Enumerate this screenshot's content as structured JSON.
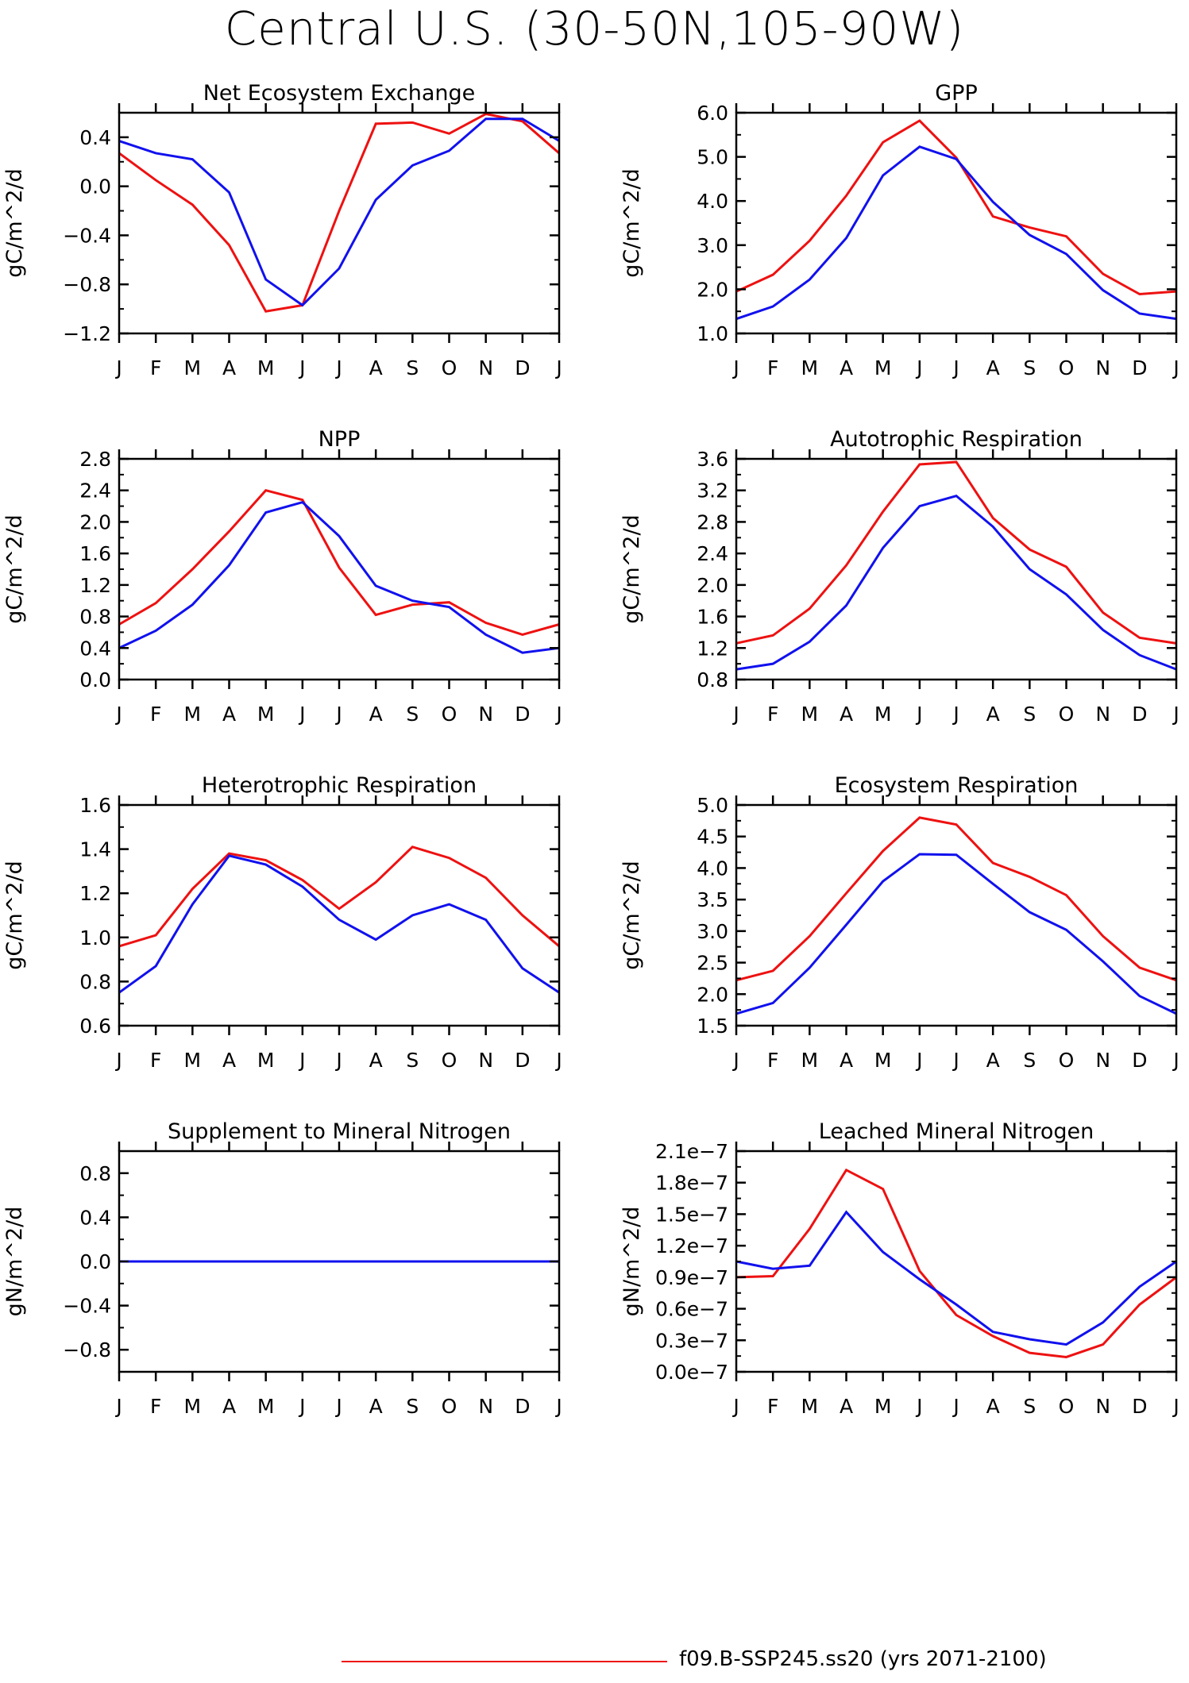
{
  "title": "Central U.S. (30-50N,105-90W)",
  "colors": {
    "series_1": "#ee1111",
    "series_2": "#1111ee",
    "axis": "#000000"
  },
  "legend": [
    {
      "label": "f09.B-SSP245.ss20 (yrs 2071-2100)",
      "color": "#ee1111"
    }
  ],
  "chart_data": [
    {
      "type": "line",
      "title": "Net Ecosystem Exchange",
      "ylabel": "gC/m^2/d",
      "categories": [
        "J",
        "F",
        "M",
        "A",
        "M",
        "J",
        "J",
        "A",
        "S",
        "O",
        "N",
        "D",
        "J"
      ],
      "ylim": [
        -1.2,
        0.6
      ],
      "yticks": [
        -1.2,
        -0.8,
        -0.4,
        0.0,
        0.4
      ],
      "ytick_labels": [
        "-1.2",
        "-0.8",
        "-0.4",
        "0.0",
        "0.4"
      ],
      "series": [
        {
          "color": "#ee1111",
          "values": [
            0.27,
            0.05,
            -0.15,
            -0.48,
            -1.02,
            -0.97,
            -0.2,
            0.51,
            0.52,
            0.43,
            0.59,
            0.53,
            0.27
          ]
        },
        {
          "color": "#1111ee",
          "values": [
            0.37,
            0.27,
            0.22,
            -0.05,
            -0.76,
            -0.97,
            -0.67,
            -0.11,
            0.17,
            0.29,
            0.55,
            0.55,
            0.37
          ]
        }
      ]
    },
    {
      "type": "line",
      "title": "GPP",
      "ylabel": "gC/m^2/d",
      "categories": [
        "J",
        "F",
        "M",
        "A",
        "M",
        "J",
        "J",
        "A",
        "S",
        "O",
        "N",
        "D",
        "J"
      ],
      "ylim": [
        1.0,
        6.0
      ],
      "yticks": [
        1.0,
        2.0,
        3.0,
        4.0,
        5.0,
        6.0
      ],
      "ytick_labels": [
        "1.0",
        "2.0",
        "3.0",
        "4.0",
        "5.0",
        "6.0"
      ],
      "series": [
        {
          "color": "#ee1111",
          "values": [
            1.95,
            2.33,
            3.1,
            4.12,
            5.33,
            5.82,
            4.98,
            3.65,
            3.4,
            3.2,
            2.35,
            1.89,
            1.95
          ]
        },
        {
          "color": "#1111ee",
          "values": [
            1.33,
            1.61,
            2.22,
            3.16,
            4.58,
            5.23,
            4.95,
            3.98,
            3.23,
            2.8,
            1.98,
            1.45,
            1.33
          ]
        }
      ]
    },
    {
      "type": "line",
      "title": "NPP",
      "ylabel": "gC/m^2/d",
      "categories": [
        "J",
        "F",
        "M",
        "A",
        "M",
        "J",
        "J",
        "A",
        "S",
        "O",
        "N",
        "D",
        "J"
      ],
      "ylim": [
        0.0,
        2.8
      ],
      "yticks": [
        0.0,
        0.4,
        0.8,
        1.2,
        1.6,
        2.0,
        2.4,
        2.8
      ],
      "ytick_labels": [
        "0.0",
        "0.4",
        "0.8",
        "1.2",
        "1.6",
        "2.0",
        "2.4",
        "2.8"
      ],
      "series": [
        {
          "color": "#ee1111",
          "values": [
            0.7,
            0.97,
            1.4,
            1.88,
            2.4,
            2.28,
            1.42,
            0.82,
            0.95,
            0.98,
            0.72,
            0.57,
            0.7
          ]
        },
        {
          "color": "#1111ee",
          "values": [
            0.4,
            0.62,
            0.95,
            1.45,
            2.12,
            2.25,
            1.82,
            1.19,
            1.0,
            0.92,
            0.57,
            0.34,
            0.4
          ]
        }
      ]
    },
    {
      "type": "line",
      "title": "Autotrophic Respiration",
      "ylabel": "gC/m^2/d",
      "categories": [
        "J",
        "F",
        "M",
        "A",
        "M",
        "J",
        "J",
        "A",
        "S",
        "O",
        "N",
        "D",
        "J"
      ],
      "ylim": [
        0.8,
        3.6
      ],
      "yticks": [
        0.8,
        1.2,
        1.6,
        2.0,
        2.4,
        2.8,
        3.2,
        3.6
      ],
      "ytick_labels": [
        "0.8",
        "1.2",
        "1.6",
        "2.0",
        "2.4",
        "2.8",
        "3.2",
        "3.6"
      ],
      "series": [
        {
          "color": "#ee1111",
          "values": [
            1.26,
            1.36,
            1.7,
            2.25,
            2.93,
            3.53,
            3.56,
            2.85,
            2.45,
            2.23,
            1.65,
            1.33,
            1.26
          ]
        },
        {
          "color": "#1111ee",
          "values": [
            0.93,
            1.0,
            1.28,
            1.74,
            2.47,
            3.0,
            3.13,
            2.74,
            2.2,
            1.88,
            1.43,
            1.11,
            0.93
          ]
        }
      ]
    },
    {
      "type": "line",
      "title": "Heterotrophic Respiration",
      "ylabel": "gC/m^2/d",
      "categories": [
        "J",
        "F",
        "M",
        "A",
        "M",
        "J",
        "J",
        "A",
        "S",
        "O",
        "N",
        "D",
        "J"
      ],
      "ylim": [
        0.6,
        1.6
      ],
      "yticks": [
        0.6,
        0.8,
        1.0,
        1.2,
        1.4,
        1.6
      ],
      "ytick_labels": [
        "0.6",
        "0.8",
        "1.0",
        "1.2",
        "1.4",
        "1.6"
      ],
      "series": [
        {
          "color": "#ee1111",
          "values": [
            0.96,
            1.01,
            1.22,
            1.38,
            1.35,
            1.26,
            1.13,
            1.25,
            1.41,
            1.36,
            1.27,
            1.1,
            0.96
          ]
        },
        {
          "color": "#1111ee",
          "values": [
            0.75,
            0.87,
            1.15,
            1.37,
            1.33,
            1.23,
            1.08,
            0.99,
            1.1,
            1.15,
            1.08,
            0.86,
            0.75
          ]
        }
      ]
    },
    {
      "type": "line",
      "title": "Ecosystem Respiration",
      "ylabel": "gC/m^2/d",
      "categories": [
        "J",
        "F",
        "M",
        "A",
        "M",
        "J",
        "J",
        "A",
        "S",
        "O",
        "N",
        "D",
        "J"
      ],
      "ylim": [
        1.5,
        5.0
      ],
      "yticks": [
        1.5,
        2.0,
        2.5,
        3.0,
        3.5,
        4.0,
        4.5,
        5.0
      ],
      "ytick_labels": [
        "1.5",
        "2.0",
        "2.5",
        "3.0",
        "3.5",
        "4.0",
        "4.5",
        "5.0"
      ],
      "series": [
        {
          "color": "#ee1111",
          "values": [
            2.22,
            2.37,
            2.92,
            3.6,
            4.27,
            4.8,
            4.69,
            4.08,
            3.86,
            3.57,
            2.92,
            2.42,
            2.22
          ]
        },
        {
          "color": "#1111ee",
          "values": [
            1.69,
            1.86,
            2.42,
            3.1,
            3.79,
            4.22,
            4.21,
            3.75,
            3.3,
            3.02,
            2.52,
            1.97,
            1.69
          ]
        }
      ]
    },
    {
      "type": "line",
      "title": "Supplement to Mineral Nitrogen",
      "ylabel": "gN/m^2/d",
      "categories": [
        "J",
        "F",
        "M",
        "A",
        "M",
        "J",
        "J",
        "A",
        "S",
        "O",
        "N",
        "D",
        "J"
      ],
      "ylim": [
        -1.0,
        1.0
      ],
      "yticks": [
        -0.8,
        -0.4,
        0.0,
        0.4,
        0.8
      ],
      "ytick_labels": [
        "-0.8",
        "-0.4",
        "0.0",
        "0.4",
        "0.8"
      ],
      "series": [
        {
          "color": "#ee1111",
          "values": [
            0,
            0,
            0,
            0,
            0,
            0,
            0,
            0,
            0,
            0,
            0,
            0,
            0
          ]
        },
        {
          "color": "#1111ee",
          "values": [
            0,
            0,
            0,
            0,
            0,
            0,
            0,
            0,
            0,
            0,
            0,
            0,
            0
          ]
        }
      ]
    },
    {
      "type": "line",
      "title": "Leached Mineral Nitrogen",
      "ylabel": "gN/m^2/d",
      "categories": [
        "J",
        "F",
        "M",
        "A",
        "M",
        "J",
        "J",
        "A",
        "S",
        "O",
        "N",
        "D",
        "J"
      ],
      "ylim": [
        0.0,
        2.1e-07
      ],
      "yticks": [
        0,
        3e-08,
        6e-08,
        9e-08,
        1.2e-07,
        1.5e-07,
        1.8e-07,
        2.1e-07
      ],
      "ytick_labels": [
        "0.0e-7",
        "0.3e-7",
        "0.6e-7",
        "0.9e-7",
        "1.2e-7",
        "1.5e-7",
        "1.8e-7",
        "2.1e-7"
      ],
      "series": [
        {
          "color": "#ee1111",
          "values": [
            9e-08,
            9.1e-08,
            1.36e-07,
            1.92e-07,
            1.74e-07,
            9.6e-08,
            5.4e-08,
            3.4e-08,
            1.8e-08,
            1.4e-08,
            2.6e-08,
            6.4e-08,
            9e-08
          ]
        },
        {
          "color": "#1111ee",
          "values": [
            1.05e-07,
            9.8e-08,
            1.01e-07,
            1.52e-07,
            1.14e-07,
            8.8e-08,
            6.4e-08,
            3.8e-08,
            3.1e-08,
            2.6e-08,
            4.7e-08,
            8.1e-08,
            1.05e-07
          ]
        }
      ]
    }
  ]
}
